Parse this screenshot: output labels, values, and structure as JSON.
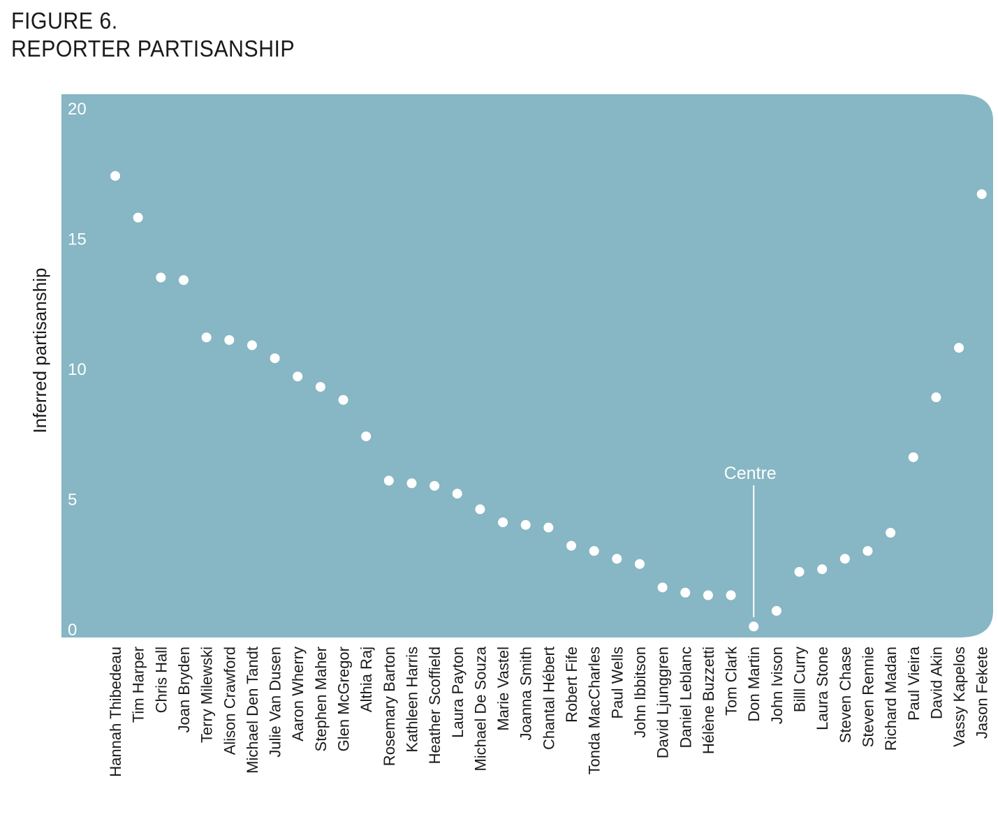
{
  "figure": {
    "number": "FIGURE 6.",
    "title": "REPORTER PARTISANSHIP"
  },
  "colors": {
    "panel": "#87b6c4",
    "point": "#ffffff",
    "text": "#1a1a1a"
  },
  "chart_data": {
    "type": "scatter",
    "title": "REPORTER PARTISANSHIP",
    "xlabel": "",
    "ylabel": "Inferred partisanship",
    "ylim": [
      0,
      20
    ],
    "yticks": [
      0,
      5,
      10,
      15,
      20
    ],
    "grid": false,
    "categories": [
      "Hannah Thibedeau",
      "Tim Harper",
      "Chris Hall",
      "Joan Bryden",
      "Terry Milewski",
      "Alison Crawford",
      "Michael Den Tandt",
      "Julie Van Dusen",
      "Aaron Wherry",
      "Stephen Maher",
      "Glen McGregor",
      "Althia Raj",
      "Rosemary Barton",
      "Kathleen Harris",
      "Heather Scoffield",
      "Laura Payton",
      "Michael De Souza",
      "Marie Vastel",
      "Joanna Smith",
      "Chantal Hébert",
      "Robert Fife",
      "Tonda MacCharles",
      "Paul Wells",
      "John Ibbitson",
      "David Ljunggren",
      "Daniel Leblanc",
      "Hélène Buzzetti",
      "Tom Clark",
      "Don Martin",
      "John Ivison",
      "Billl Curry",
      "Laura Stone",
      "Steven Chase",
      "Steven Rennie",
      "Richard Madan",
      "Paul Vieira",
      "David Akin",
      "Vassy Kapelos",
      "Jason Fekete"
    ],
    "values": [
      17.4,
      15.8,
      13.5,
      13.4,
      11.2,
      11.1,
      10.9,
      10.4,
      9.7,
      9.3,
      8.8,
      7.4,
      5.7,
      5.6,
      5.5,
      5.2,
      4.6,
      4.1,
      4.0,
      3.9,
      3.2,
      3.0,
      2.7,
      2.5,
      1.6,
      1.4,
      1.3,
      1.3,
      0.1,
      0.7,
      2.2,
      2.3,
      2.7,
      3.0,
      3.7,
      6.6,
      8.9,
      10.8,
      16.7
    ],
    "annotations": [
      {
        "text": "Centre",
        "category": "Don Martin"
      }
    ]
  }
}
